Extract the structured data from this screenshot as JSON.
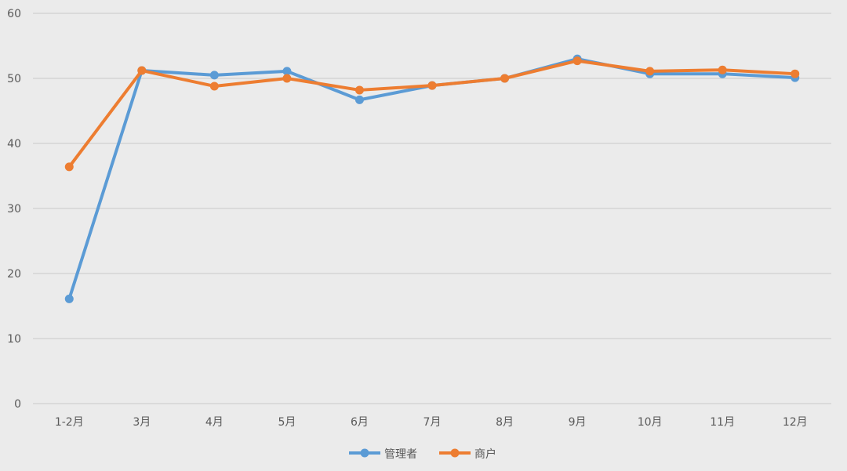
{
  "chart_data": {
    "type": "line",
    "title": "",
    "xlabel": "",
    "ylabel": "",
    "ylim": [
      0,
      60
    ],
    "yticks": [
      0,
      10,
      20,
      30,
      40,
      50,
      60
    ],
    "grid": true,
    "legend_position": "bottom",
    "categories": [
      "1-2月",
      "3月",
      "4月",
      "5月",
      "6月",
      "7月",
      "8月",
      "9月",
      "10月",
      "11月",
      "12月"
    ],
    "series": [
      {
        "name": "管理者",
        "color": "#5b9bd5",
        "values": [
          16.1,
          51.2,
          50.5,
          51.1,
          46.7,
          48.9,
          50.0,
          53.0,
          50.7,
          50.7,
          50.1
        ]
      },
      {
        "name": "商户",
        "color": "#ed7d31",
        "values": [
          36.4,
          51.2,
          48.8,
          50.0,
          48.2,
          48.9,
          50.0,
          52.7,
          51.1,
          51.3,
          50.7
        ]
      }
    ]
  }
}
